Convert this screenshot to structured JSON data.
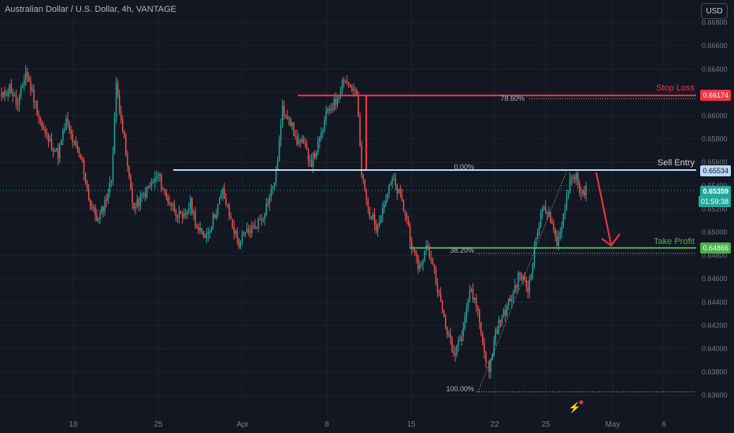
{
  "header": {
    "title": "Australian Dollar / U.S. Dollar, 4h, VANTAGE",
    "currency_button": "USD"
  },
  "colors": {
    "background": "#131722",
    "up": "#26a69a",
    "down": "#ef5350",
    "stop": "#f23645",
    "entry": "#bbd9fb",
    "target": "#4caf50",
    "grid": "#1e222d"
  },
  "chart_data": {
    "type": "candlestick",
    "ylim": [
      0.636,
      0.6688
    ],
    "y_ticks": [
      "0.66800",
      "0.66600",
      "0.66400",
      "0.66200",
      "0.66000",
      "0.65800",
      "0.65600",
      "0.65400",
      "0.65200",
      "0.65000",
      "0.64800",
      "0.64600",
      "0.64400",
      "0.64200",
      "0.64000",
      "0.63800",
      "0.63600"
    ],
    "x_ticks": [
      "18",
      "25",
      "Apr",
      "8",
      "15",
      "22",
      "25",
      "May",
      "6"
    ],
    "levels": [
      {
        "name": "Stop Loss",
        "price": 0.66174,
        "label": "0.66174"
      },
      {
        "name": "Sell Entry",
        "price": 0.65534,
        "label": "0.65534"
      },
      {
        "name": "Take Profit",
        "price": 0.64866,
        "label": "0.64866"
      }
    ],
    "fib_levels": [
      {
        "label": "78.60%",
        "price": 0.66174
      },
      {
        "label": "0.00%",
        "price": 0.65534
      },
      {
        "label": "38.20%",
        "price": 0.64818
      },
      {
        "label": "100.00%",
        "price": 0.6363
      }
    ],
    "current_price": "0.65359",
    "countdown": "01:59:38",
    "anchors": [
      [
        0,
        0.6615
      ],
      [
        5,
        0.6625
      ],
      [
        10,
        0.6608
      ],
      [
        15,
        0.6638
      ],
      [
        20,
        0.6615
      ],
      [
        25,
        0.659
      ],
      [
        30,
        0.6577
      ],
      [
        35,
        0.6567
      ],
      [
        40,
        0.6595
      ],
      [
        45,
        0.6575
      ],
      [
        50,
        0.656
      ],
      [
        55,
        0.6523
      ],
      [
        60,
        0.651
      ],
      [
        65,
        0.653
      ],
      [
        68,
        0.6545
      ],
      [
        71,
        0.6625
      ],
      [
        74,
        0.66
      ],
      [
        78,
        0.6555
      ],
      [
        82,
        0.652
      ],
      [
        87,
        0.653
      ],
      [
        92,
        0.654
      ],
      [
        97,
        0.6549
      ],
      [
        102,
        0.653
      ],
      [
        107,
        0.652
      ],
      [
        112,
        0.651
      ],
      [
        117,
        0.6525
      ],
      [
        122,
        0.65
      ],
      [
        127,
        0.6498
      ],
      [
        132,
        0.6515
      ],
      [
        137,
        0.6535
      ],
      [
        142,
        0.651
      ],
      [
        147,
        0.649
      ],
      [
        152,
        0.65
      ],
      [
        157,
        0.6505
      ],
      [
        162,
        0.6515
      ],
      [
        167,
        0.6535
      ],
      [
        170,
        0.655
      ],
      [
        174,
        0.6605
      ],
      [
        178,
        0.66
      ],
      [
        182,
        0.658
      ],
      [
        187,
        0.6575
      ],
      [
        192,
        0.656
      ],
      [
        197,
        0.6578
      ],
      [
        202,
        0.6605
      ],
      [
        207,
        0.6612
      ],
      [
        212,
        0.6633
      ],
      [
        216,
        0.6625
      ],
      [
        220,
        0.6618
      ],
      [
        223,
        0.655
      ],
      [
        227,
        0.652
      ],
      [
        232,
        0.6505
      ],
      [
        237,
        0.6525
      ],
      [
        242,
        0.6545
      ],
      [
        247,
        0.653
      ],
      [
        252,
        0.6505
      ],
      [
        255,
        0.648
      ],
      [
        259,
        0.647
      ],
      [
        263,
        0.6487
      ],
      [
        267,
        0.6475
      ],
      [
        271,
        0.6445
      ],
      [
        275,
        0.642
      ],
      [
        280,
        0.6395
      ],
      [
        285,
        0.6415
      ],
      [
        290,
        0.645
      ],
      [
        294,
        0.644
      ],
      [
        298,
        0.6405
      ],
      [
        302,
        0.638
      ],
      [
        306,
        0.6415
      ],
      [
        311,
        0.643
      ],
      [
        316,
        0.6445
      ],
      [
        321,
        0.6465
      ],
      [
        326,
        0.645
      ],
      [
        331,
        0.6495
      ],
      [
        336,
        0.6525
      ],
      [
        340,
        0.651
      ],
      [
        344,
        0.6487
      ],
      [
        348,
        0.6515
      ],
      [
        352,
        0.6545
      ],
      [
        356,
        0.655
      ],
      [
        359,
        0.653
      ],
      [
        362,
        0.6536
      ]
    ]
  }
}
